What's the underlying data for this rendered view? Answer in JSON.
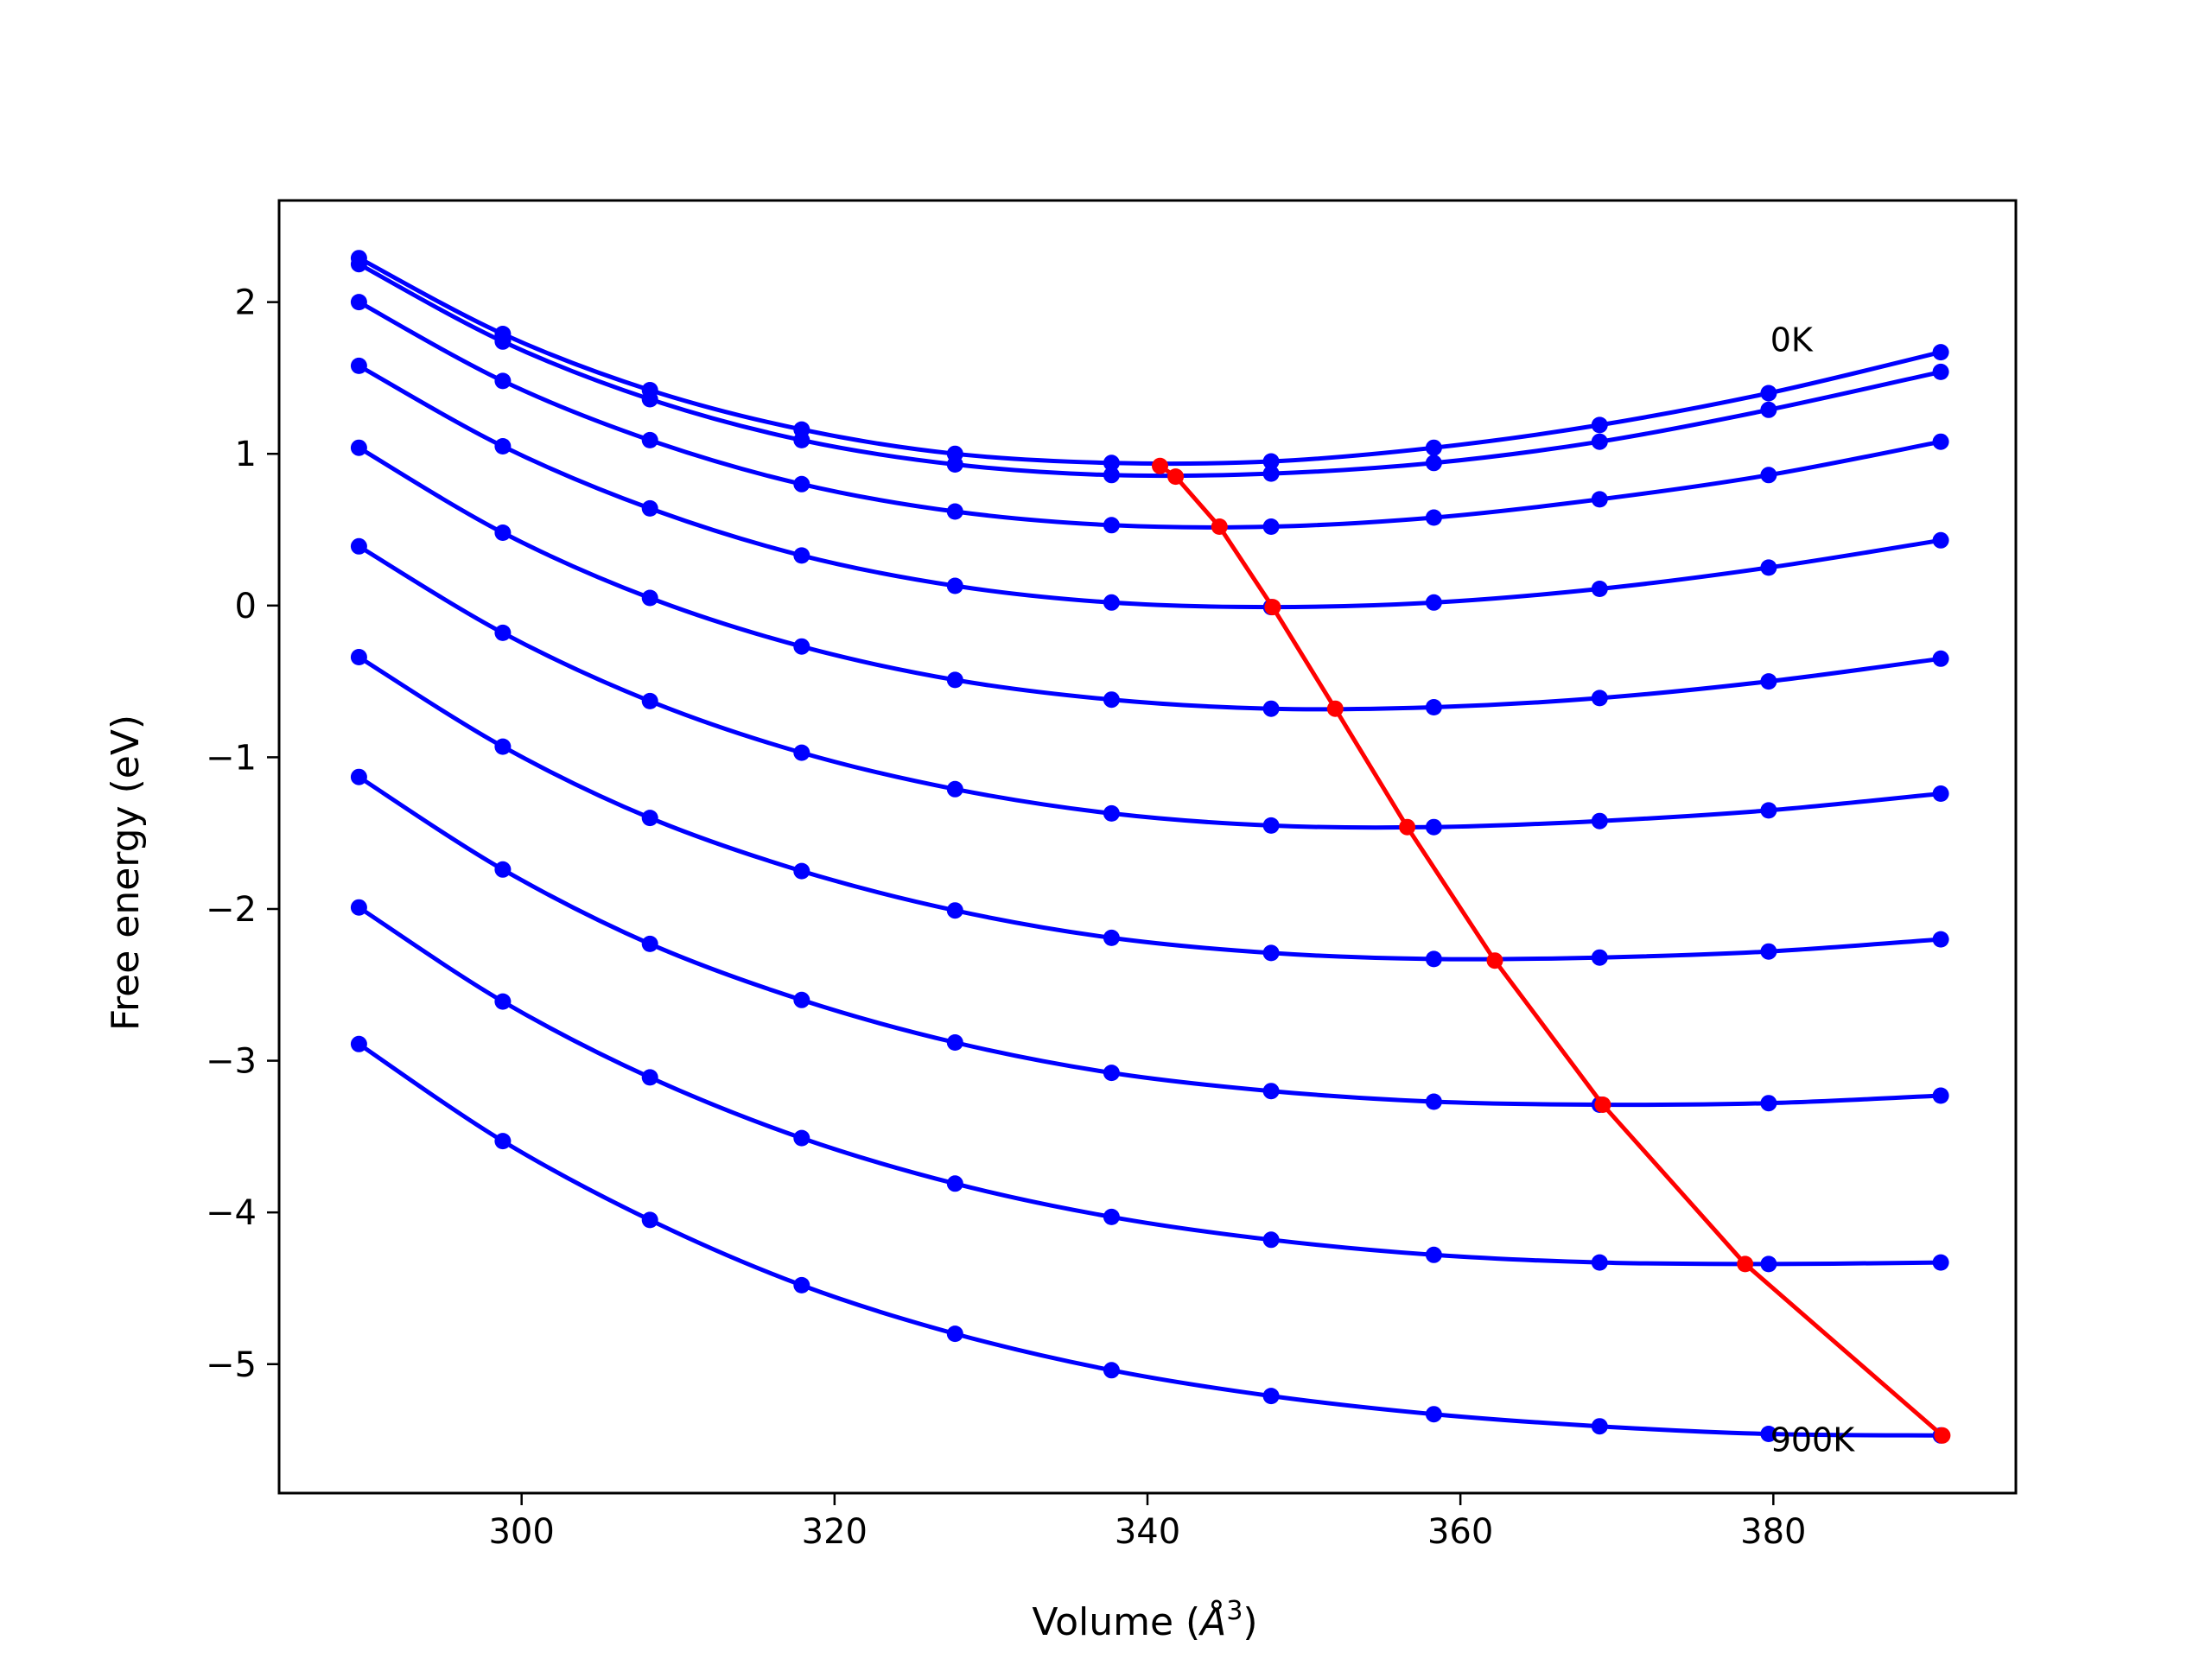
{
  "chart_data": {
    "type": "line",
    "title": "",
    "xlabel": "Volume (",
    "xlabel_unit": "Å",
    "xlabel_exp": "3",
    "xlabel_close": ")",
    "ylabel": "Free energy (eV)",
    "xlim": [
      284.5,
      395.5
    ],
    "ylim": [
      -5.85,
      2.67
    ],
    "xticks": [
      300,
      320,
      340,
      360,
      380
    ],
    "xtick_labels": [
      "300",
      "320",
      "340",
      "360",
      "380"
    ],
    "yticks": [
      2,
      1,
      0,
      -1,
      -2,
      -3,
      -4,
      -5
    ],
    "ytick_labels": [
      "2",
      "1",
      "0",
      "−1",
      "−2",
      "−3",
      "−4",
      "−5"
    ],
    "grid": false,
    "colors": {
      "curves": "#0000ff",
      "minima": "#ff0000",
      "axes": "#000000"
    },
    "annotations": [
      {
        "text": "0K",
        "x": 379.8,
        "y": 1.75
      },
      {
        "text": "900K",
        "x": 379.8,
        "y": -5.5
      }
    ],
    "x": [
      289.6,
      298.8,
      308.2,
      317.9,
      327.7,
      337.7,
      347.9,
      358.3,
      368.9,
      379.7,
      390.7
    ],
    "series": [
      {
        "values": [
          2.29,
          1.79,
          1.42,
          1.16,
          1.0,
          0.94,
          0.95,
          1.04,
          1.19,
          1.4,
          1.67
        ]
      },
      {
        "values": [
          2.25,
          1.74,
          1.36,
          1.09,
          0.93,
          0.86,
          0.87,
          0.94,
          1.08,
          1.29,
          1.54
        ]
      },
      {
        "values": [
          2.0,
          1.48,
          1.09,
          0.8,
          0.62,
          0.53,
          0.52,
          0.58,
          0.7,
          0.86,
          1.08
        ]
      },
      {
        "values": [
          1.58,
          1.05,
          0.64,
          0.33,
          0.13,
          0.02,
          -0.01,
          0.02,
          0.11,
          0.25,
          0.43
        ]
      },
      {
        "values": [
          1.04,
          0.48,
          0.05,
          -0.27,
          -0.49,
          -0.62,
          -0.68,
          -0.67,
          -0.61,
          -0.5,
          -0.35
        ]
      },
      {
        "values": [
          0.39,
          -0.18,
          -0.63,
          -0.97,
          -1.21,
          -1.37,
          -1.45,
          -1.46,
          -1.42,
          -1.35,
          -1.24
        ]
      },
      {
        "values": [
          -0.34,
          -0.93,
          -1.4,
          -1.75,
          -2.01,
          -2.19,
          -2.29,
          -2.33,
          -2.32,
          -2.28,
          -2.2
        ]
      },
      {
        "values": [
          -1.13,
          -1.74,
          -2.23,
          -2.6,
          -2.88,
          -3.08,
          -3.2,
          -3.27,
          -3.29,
          -3.28,
          -3.23
        ]
      },
      {
        "values": [
          -1.99,
          -2.61,
          -3.11,
          -3.51,
          -3.81,
          -4.03,
          -4.18,
          -4.28,
          -4.33,
          -4.34,
          -4.33
        ]
      },
      {
        "values": [
          -2.89,
          -3.53,
          -4.05,
          -4.48,
          -4.8,
          -5.04,
          -5.21,
          -5.33,
          -5.41,
          -5.46,
          -5.47
        ]
      }
    ],
    "minima": {
      "x": [
        340.8,
        341.8,
        344.6,
        348.0,
        352.0,
        356.6,
        362.2,
        369.1,
        378.2,
        390.8
      ],
      "y": [
        0.92,
        0.85,
        0.52,
        -0.01,
        -0.68,
        -1.46,
        -2.34,
        -3.29,
        -4.34,
        -5.47
      ]
    }
  }
}
